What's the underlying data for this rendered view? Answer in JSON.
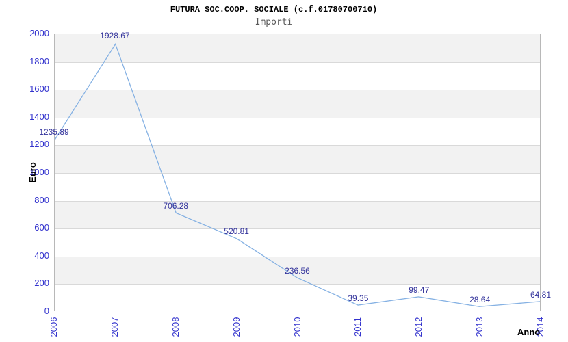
{
  "title": "FUTURA SOC.COOP. SOCIALE (c.f.01780700710)",
  "subtitle": "Importi",
  "chart_data": {
    "type": "line",
    "title": "FUTURA SOC.COOP. SOCIALE (c.f.01780700710)",
    "subtitle": "Importi",
    "categories": [
      "2006",
      "2007",
      "2008",
      "2009",
      "2010",
      "2011",
      "2012",
      "2013",
      "2014"
    ],
    "series": [
      {
        "name": "Importi",
        "values": [
          1235.89,
          1928.67,
          706.28,
          520.81,
          236.56,
          39.35,
          99.47,
          28.64,
          64.81
        ]
      }
    ],
    "data_labels": [
      "1235.89",
      "1928.67",
      "706.28",
      "520.81",
      "236.56",
      "39.35",
      "99.47",
      "28.64",
      "64.81"
    ],
    "xlabel": "Anno",
    "ylabel": "Euro",
    "ylim": [
      0,
      2000
    ],
    "yticks": [
      0,
      200,
      400,
      600,
      800,
      1000,
      1200,
      1400,
      1600,
      1800,
      2000
    ],
    "legend": "none",
    "grid": "horizontal-bands-alternating"
  },
  "colors": {
    "line": "#85b1e3",
    "tick_label": "#3232cd",
    "data_label": "#32329b",
    "band_gray": "#f2f2f2",
    "gridline": "#d9d9d9",
    "plot_border": "#b8b8b8",
    "title": "#000000",
    "subtitle": "#5a5a5a",
    "axis_title": "#000000",
    "background": "#ffffff"
  }
}
